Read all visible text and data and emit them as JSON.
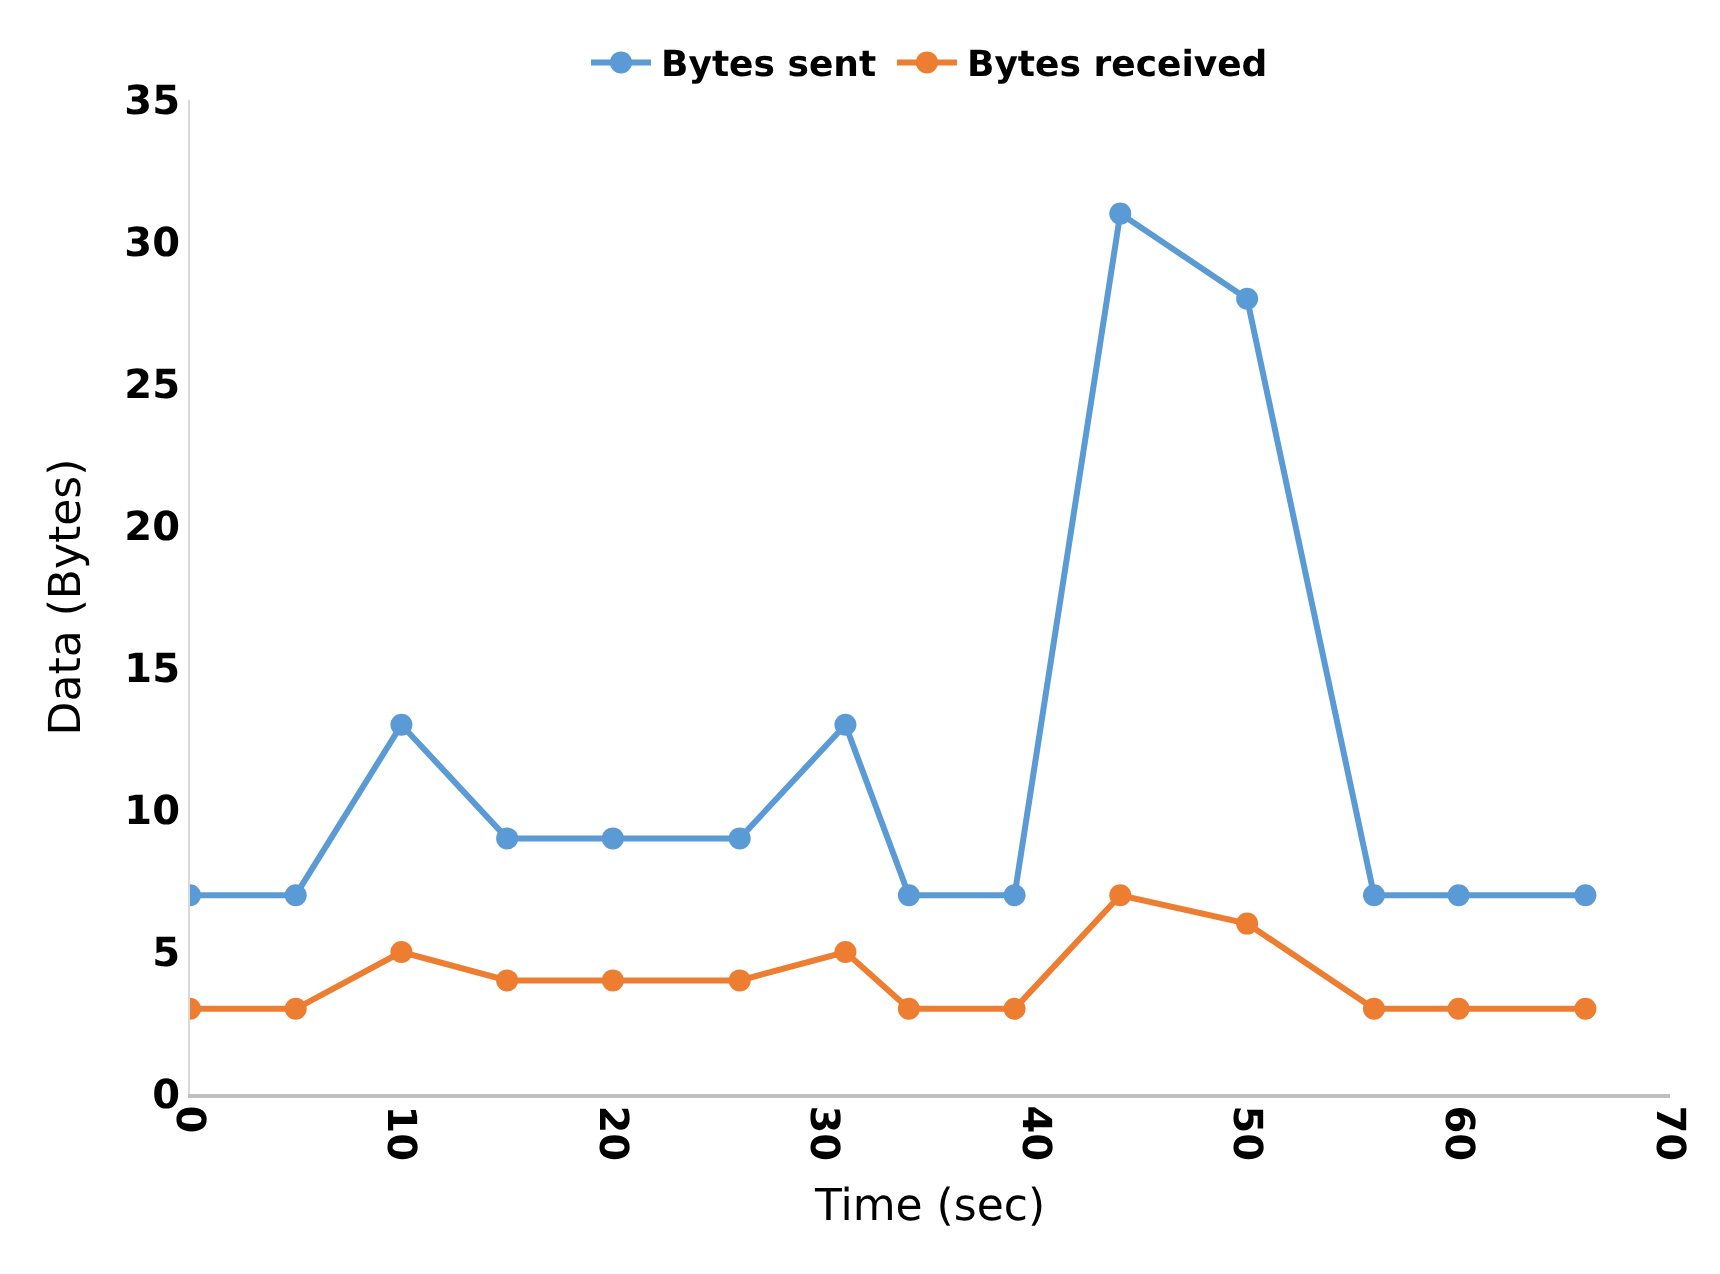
{
  "chart_data": {
    "type": "line",
    "xlabel": "Time (sec)",
    "ylabel": "Data (Bytes)",
    "x": [
      0,
      5,
      10,
      15,
      20,
      26,
      31,
      34,
      39,
      44,
      50,
      56,
      60,
      66
    ],
    "series": [
      {
        "name": "Bytes sent",
        "color": "#5b9bd5",
        "values": [
          7,
          7,
          13,
          9,
          9,
          9,
          13,
          7,
          7,
          31,
          28,
          7,
          7,
          7
        ]
      },
      {
        "name": "Bytes received",
        "color": "#ed7d31",
        "values": [
          3,
          3,
          5,
          4,
          4,
          4,
          5,
          3,
          3,
          7,
          6,
          3,
          3,
          3
        ]
      }
    ],
    "xlim": [
      0,
      70
    ],
    "xticks": [
      0,
      10,
      20,
      30,
      40,
      50,
      60,
      70
    ],
    "ylim": [
      0,
      35
    ],
    "yticks": [
      0,
      5,
      10,
      15,
      20,
      25,
      30,
      35
    ],
    "grid": false,
    "legend": "top",
    "marker": "circle",
    "line_style": "solid"
  }
}
